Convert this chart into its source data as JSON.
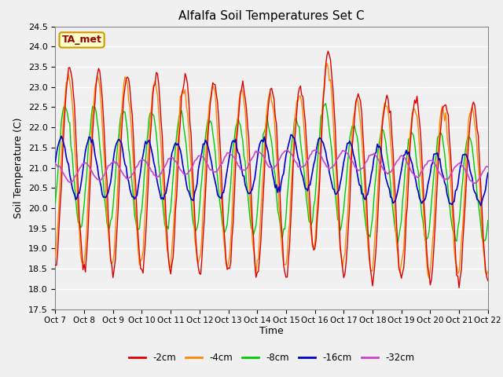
{
  "title": "Alfalfa Soil Temperatures Set C",
  "ylabel": "Soil Temperature (C)",
  "xlabel": "Time",
  "ylim": [
    17.5,
    24.5
  ],
  "background_color": "#f0f0f0",
  "plot_bg_color": "#f0f0f0",
  "grid_color": "#ffffff",
  "x_labels": [
    "Oct 7",
    "Oct 8",
    "Oct 9",
    "Oct 10",
    "Oct 11",
    "Oct 12",
    "Oct 13",
    "Oct 14",
    "Oct 15",
    "Oct 16",
    "Oct 17",
    "Oct 18",
    "Oct 19",
    "Oct 20",
    "Oct 21",
    "Oct 22"
  ],
  "series_colors": {
    "-2cm": "#dd0000",
    "-4cm": "#ff8800",
    "-8cm": "#00cc00",
    "-16cm": "#0000cc",
    "-32cm": "#cc44cc"
  },
  "legend_label": "TA_met",
  "n_points": 361
}
